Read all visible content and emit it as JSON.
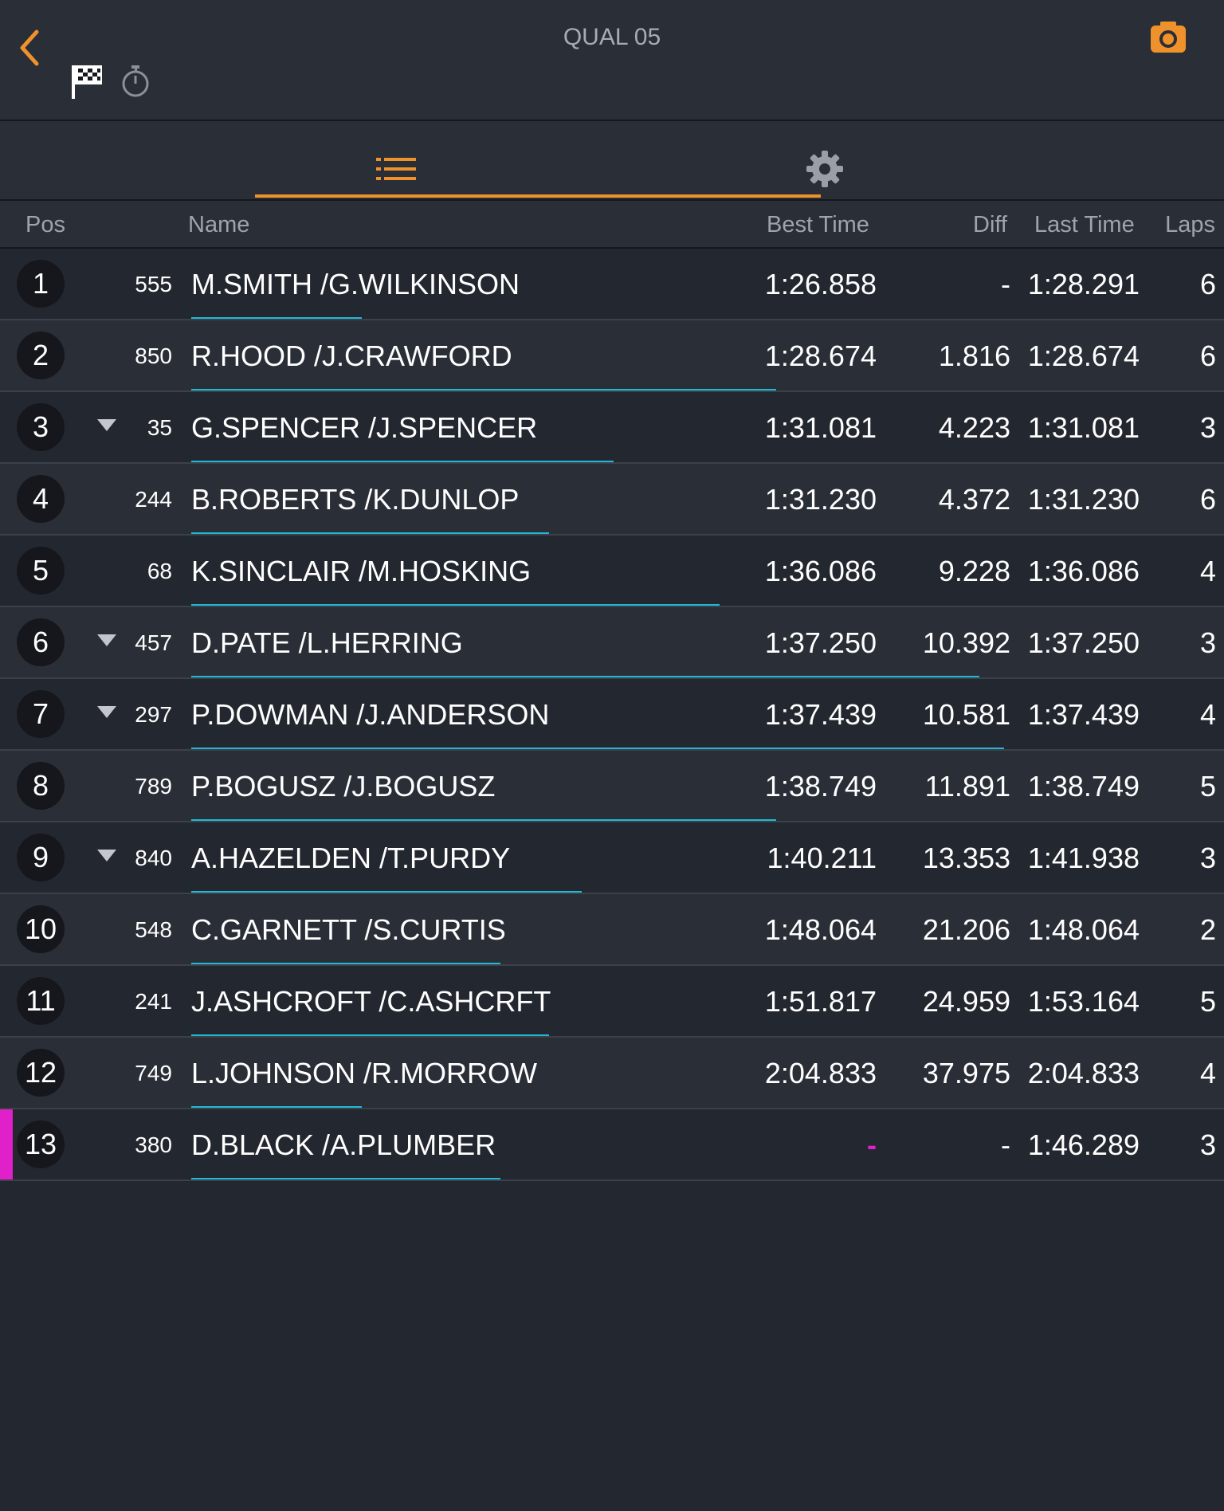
{
  "header": {
    "title": "QUAL 05",
    "accent_color": "#f0922b"
  },
  "icons": {
    "back": "chevron-left-icon",
    "flag": "checkered-flag-icon",
    "timer": "stopwatch-icon",
    "camera": "camera-icon",
    "list": "list-icon",
    "settings": "gear-icon"
  },
  "columns": {
    "pos": "Pos",
    "name": "Name",
    "best": "Best Time",
    "diff": "Diff",
    "last": "Last Time",
    "laps": "Laps"
  },
  "rows": [
    {
      "pos": "1",
      "car": "555",
      "name": "M.SMITH /G.WILKINSON",
      "best": "1:26.858",
      "diff": "-",
      "last": "1:28.291",
      "laps": "6",
      "trend": "",
      "progress": 0.21,
      "marker": false
    },
    {
      "pos": "2",
      "car": "850",
      "name": "R.HOOD /J.CRAWFORD",
      "best": "1:28.674",
      "diff": "1.816",
      "last": "1:28.674",
      "laps": "6",
      "trend": "",
      "progress": 0.72,
      "marker": false
    },
    {
      "pos": "3",
      "car": "35",
      "name": "G.SPENCER /J.SPENCER",
      "best": "1:31.081",
      "diff": "4.223",
      "last": "1:31.081",
      "laps": "3",
      "trend": "down",
      "progress": 0.52,
      "marker": false
    },
    {
      "pos": "4",
      "car": "244",
      "name": "B.ROBERTS /K.DUNLOP",
      "best": "1:31.230",
      "diff": "4.372",
      "last": "1:31.230",
      "laps": "6",
      "trend": "",
      "progress": 0.44,
      "marker": false
    },
    {
      "pos": "5",
      "car": "68",
      "name": "K.SINCLAIR /M.HOSKING",
      "best": "1:36.086",
      "diff": "9.228",
      "last": "1:36.086",
      "laps": "4",
      "trend": "",
      "progress": 0.65,
      "marker": false
    },
    {
      "pos": "6",
      "car": "457",
      "name": "D.PATE /L.HERRING",
      "best": "1:37.250",
      "diff": "10.392",
      "last": "1:37.250",
      "laps": "3",
      "trend": "down",
      "progress": 0.97,
      "marker": false
    },
    {
      "pos": "7",
      "car": "297",
      "name": "P.DOWMAN /J.ANDERSON",
      "best": "1:37.439",
      "diff": "10.581",
      "last": "1:37.439",
      "laps": "4",
      "trend": "down",
      "progress": 1.0,
      "marker": false
    },
    {
      "pos": "8",
      "car": "789",
      "name": "P.BOGUSZ /J.BOGUSZ",
      "best": "1:38.749",
      "diff": "11.891",
      "last": "1:38.749",
      "laps": "5",
      "trend": "",
      "progress": 0.72,
      "marker": false
    },
    {
      "pos": "9",
      "car": "840",
      "name": "A.HAZELDEN /T.PURDY",
      "best": "1:40.211",
      "diff": "13.353",
      "last": "1:41.938",
      "laps": "3",
      "trend": "down",
      "progress": 0.48,
      "marker": false
    },
    {
      "pos": "10",
      "car": "548",
      "name": "C.GARNETT /S.CURTIS",
      "best": "1:48.064",
      "diff": "21.206",
      "last": "1:48.064",
      "laps": "2",
      "trend": "",
      "progress": 0.38,
      "marker": false
    },
    {
      "pos": "11",
      "car": "241",
      "name": "J.ASHCROFT /C.ASHCRFT",
      "best": "1:51.817",
      "diff": "24.959",
      "last": "1:53.164",
      "laps": "5",
      "trend": "",
      "progress": 0.44,
      "marker": false
    },
    {
      "pos": "12",
      "car": "749",
      "name": "L.JOHNSON /R.MORROW",
      "best": "2:04.833",
      "diff": "37.975",
      "last": "2:04.833",
      "laps": "4",
      "trend": "",
      "progress": 0.21,
      "marker": false
    },
    {
      "pos": "13",
      "car": "380",
      "name": "D.BLACK /A.PLUMBER",
      "best": "-",
      "diff": "-",
      "last": "1:46.289",
      "laps": "3",
      "trend": "",
      "progress": 0.38,
      "marker": true
    }
  ]
}
